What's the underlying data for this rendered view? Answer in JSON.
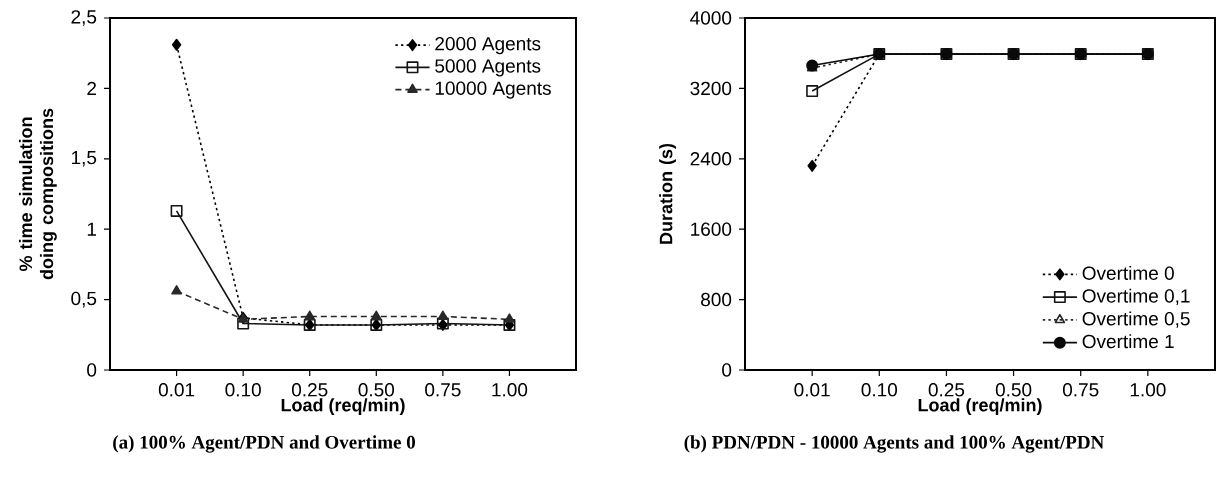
{
  "chart_data": [
    {
      "type": "line",
      "title": "(a) 100% Agent/PDN and Overtime 0",
      "xlabel": "Load (req/min)",
      "ylabel": "% time simulation doing compositions",
      "categories": [
        "0.01",
        "0.10",
        "0.25",
        "0.50",
        "0.75",
        "1.00"
      ],
      "ylim": [
        0,
        2.5
      ],
      "yticks": [
        0,
        {
          "value": 0.5,
          "label": "0,5"
        },
        1,
        {
          "value": 1.5,
          "label": "1,5"
        },
        2,
        {
          "value": 2.5,
          "label": "2,5"
        }
      ],
      "grid": false,
      "legend": "top right",
      "series": [
        {
          "name": "2000 Agents",
          "color": "#000000",
          "marker": "diamond",
          "line_style": "dotted",
          "values": [
            2.31,
            0.37,
            0.32,
            0.32,
            0.32,
            0.32
          ]
        },
        {
          "name": "5000 Agents",
          "color": "#141414",
          "marker": "square",
          "line_style": "solid",
          "values": [
            1.13,
            0.33,
            0.32,
            0.32,
            0.33,
            0.32
          ]
        },
        {
          "name": "10000 Agents",
          "color": "#282828",
          "marker": "triangle",
          "line_style": "dashed",
          "values": [
            0.56,
            0.36,
            0.38,
            0.38,
            0.38,
            0.36
          ]
        }
      ]
    },
    {
      "type": "line",
      "title": "(b) PDN/PDN - 10000 Agents and 100% Agent/PDN",
      "xlabel": "Load (req/min)",
      "ylabel": "Duration (s)",
      "categories": [
        "0.01",
        "0.10",
        "0.25",
        "0.50",
        "0.75",
        "1.00"
      ],
      "ylim": [
        0,
        4000
      ],
      "yticks": [
        0,
        800,
        1600,
        2400,
        3200,
        4000
      ],
      "grid": false,
      "legend": "bottom right",
      "series": [
        {
          "name": "Overtime 0",
          "color": "#000000",
          "marker": "diamond",
          "line_style": "dotted",
          "values": [
            2320,
            3590,
            3590,
            3590,
            3590,
            3590
          ]
        },
        {
          "name": "Overtime 0,1",
          "color": "#141414",
          "marker": "square",
          "line_style": "solid",
          "values": [
            3170,
            3590,
            3590,
            3590,
            3590,
            3590
          ]
        },
        {
          "name": "Overtime 0,5",
          "color": "#282828",
          "marker": "triangle",
          "line_style": "dotted",
          "values": [
            3430,
            3590,
            3590,
            3590,
            3590,
            3590
          ]
        },
        {
          "name": "Overtime 1",
          "color": "#0a0a0a",
          "marker": "circle",
          "line_style": "solid",
          "values": [
            3460,
            3590,
            3590,
            3590,
            3590,
            3590
          ]
        }
      ]
    }
  ]
}
